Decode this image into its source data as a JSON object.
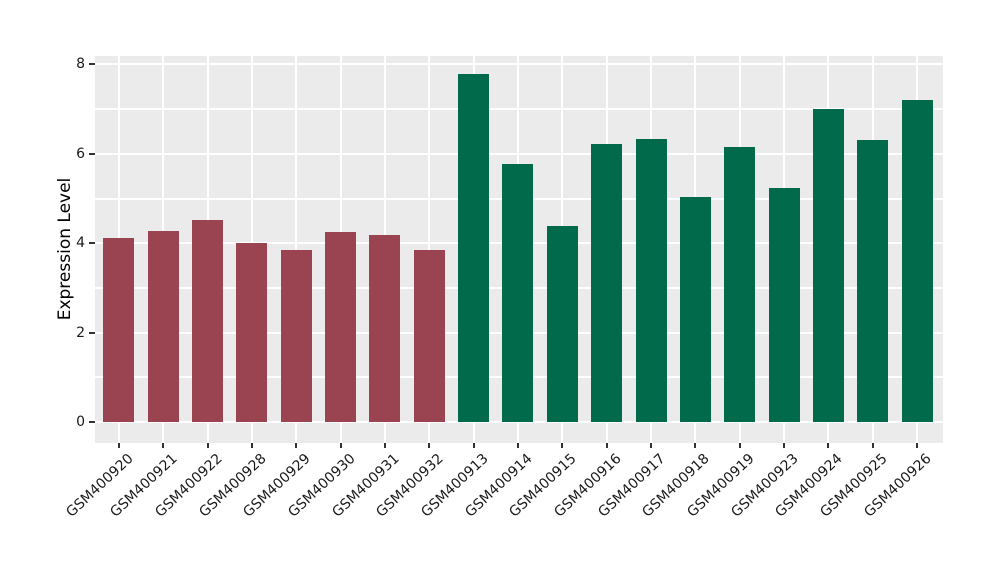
{
  "chart_data": {
    "type": "bar",
    "ylabel": "Expression Level",
    "xlabel": "",
    "categories": [
      "GSM400920",
      "GSM400921",
      "GSM400922",
      "GSM400928",
      "GSM400929",
      "GSM400930",
      "GSM400931",
      "GSM400932",
      "GSM400913",
      "GSM400914",
      "GSM400915",
      "GSM400916",
      "GSM400917",
      "GSM400918",
      "GSM400919",
      "GSM400923",
      "GSM400924",
      "GSM400925",
      "GSM400926"
    ],
    "values": [
      4.12,
      4.28,
      4.53,
      4.01,
      3.84,
      4.26,
      4.18,
      3.84,
      7.79,
      5.78,
      4.38,
      6.23,
      6.34,
      5.03,
      6.15,
      5.23,
      7.0,
      6.3,
      7.21
    ],
    "bar_groups": [
      "maroon",
      "maroon",
      "maroon",
      "maroon",
      "maroon",
      "maroon",
      "maroon",
      "maroon",
      "green",
      "green",
      "green",
      "green",
      "green",
      "green",
      "green",
      "green",
      "green",
      "green",
      "green"
    ],
    "group_colors": {
      "maroon": "#9A4351",
      "green": "#016A4A"
    },
    "yticks": [
      0,
      2,
      4,
      6,
      8
    ],
    "ylim": [
      0,
      8
    ],
    "grid": true,
    "gridline_step": 1,
    "legend_position": "none",
    "panel_background": "#EBEBEB",
    "gridline_color": "#FFFFFF",
    "tick_label_color": "#1A1A1A",
    "axis_title_color": "#000000"
  }
}
